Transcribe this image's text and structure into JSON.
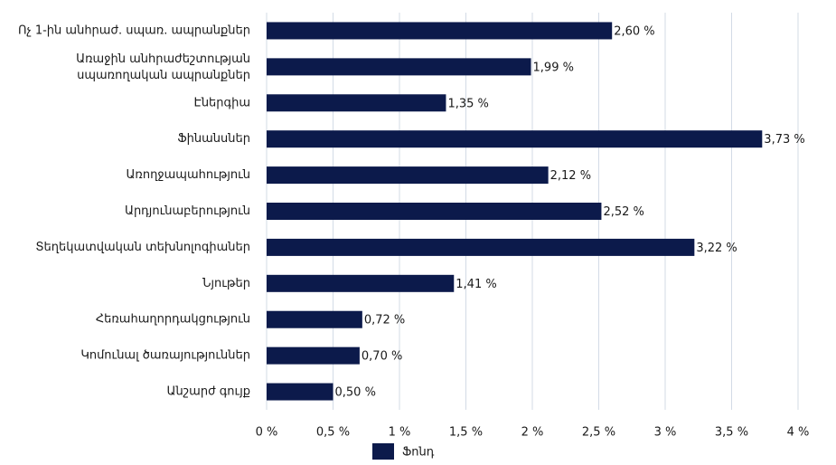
{
  "chart_data": {
    "type": "bar",
    "orientation": "horizontal",
    "categories": [
      "Ոչ 1-ին անհրաժ. սպառ. ապրանքներ",
      "Առաջին անհրաժեշտության սպառողական ապրանքներ",
      "Էներգիա",
      "Ֆինանսներ",
      "Առողջապահություն",
      "Արդյունաբերություն",
      "Տեղեկատվական տեխնոլոգիաներ",
      "Նյութեր",
      "Հեռահաղորդակցություն",
      "Կոմունալ ծառայություններ",
      "Անշարժ գույք"
    ],
    "series": [
      {
        "name": "Ֆոնդ",
        "color": "#0c1a4b",
        "values": [
          2.6,
          1.99,
          1.35,
          3.73,
          2.12,
          2.52,
          3.22,
          1.41,
          0.72,
          0.7,
          0.5
        ],
        "value_labels": [
          "2,60 %",
          "1,99 %",
          "1,35 %",
          "3,73 %",
          "2,12 %",
          "2,52 %",
          "3,22 %",
          "1,41 %",
          "0,72 %",
          "0,70 %",
          "0,50 %"
        ]
      }
    ],
    "xlim": [
      0,
      4
    ],
    "xticks": [
      {
        "value": 0,
        "label": "0 %"
      },
      {
        "value": 0.5,
        "label": "0,5 %"
      },
      {
        "value": 1,
        "label": "1 %"
      },
      {
        "value": 1.5,
        "label": "1,5 %"
      },
      {
        "value": 2,
        "label": "2 %"
      },
      {
        "value": 2.5,
        "label": "2,5 %"
      },
      {
        "value": 3,
        "label": "3 %"
      },
      {
        "value": 3.5,
        "label": "3,5 %"
      },
      {
        "value": 4,
        "label": "4 %"
      }
    ],
    "grid": true,
    "legend": "bottom"
  }
}
